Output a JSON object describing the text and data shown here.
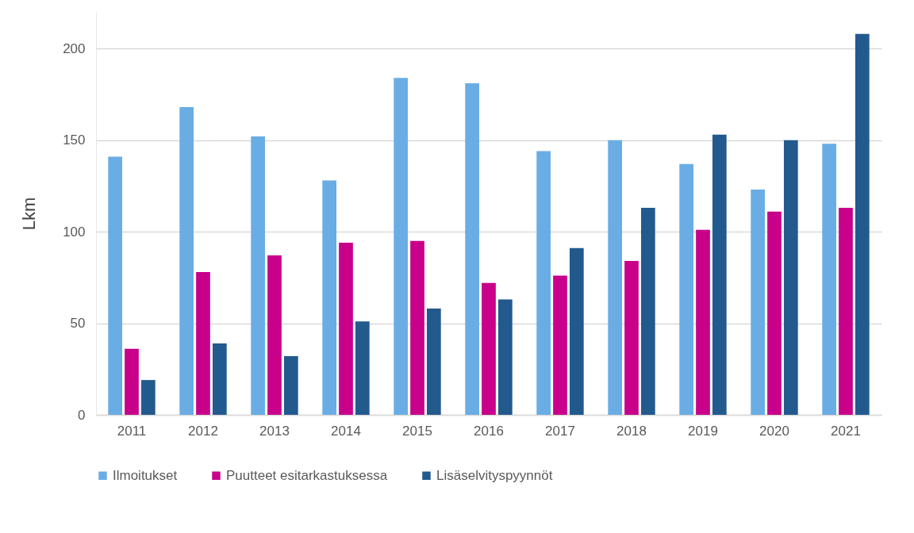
{
  "chart_data": {
    "type": "bar",
    "ylabel": "Lkm",
    "categories": [
      "2011",
      "2012",
      "2013",
      "2014",
      "2015",
      "2016",
      "2017",
      "2018",
      "2019",
      "2020",
      "2021"
    ],
    "series": [
      {
        "name": "Ilmoitukset",
        "color": "#6aade4",
        "values": [
          141,
          168,
          152,
          128,
          184,
          181,
          144,
          150,
          137,
          123,
          148
        ]
      },
      {
        "name": "Puutteet esitarkastuksessa",
        "color": "#c8008a",
        "values": [
          36,
          78,
          87,
          94,
          95,
          72,
          76,
          84,
          101,
          111,
          113
        ]
      },
      {
        "name": "Lisäselvityspyynnöt",
        "color": "#235a8e",
        "values": [
          19,
          39,
          32,
          51,
          58,
          63,
          91,
          113,
          153,
          150,
          208
        ]
      }
    ],
    "ylim": [
      0,
      220
    ],
    "yticks": [
      0,
      50,
      100,
      150,
      200
    ],
    "grid": "y",
    "legend": "bottom"
  }
}
